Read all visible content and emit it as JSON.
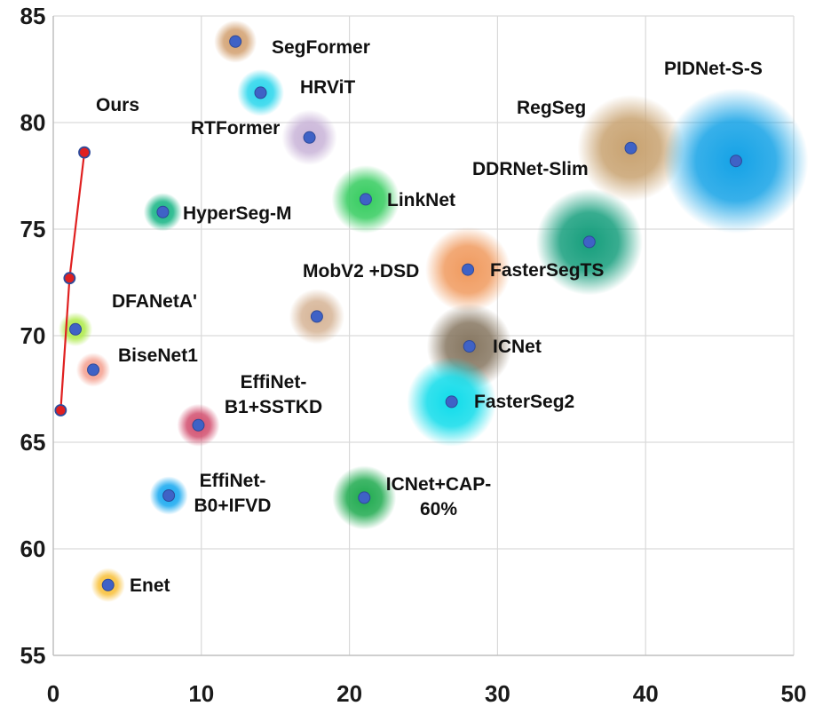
{
  "chart_data": {
    "type": "scatter",
    "title": "",
    "xlabel": "",
    "ylabel": "",
    "xlim": [
      0,
      50
    ],
    "ylim": [
      55,
      85
    ],
    "xticks": [
      "0",
      "10",
      "20",
      "30",
      "40",
      "50"
    ],
    "yticks": [
      "55",
      "60",
      "65",
      "70",
      "75",
      "80",
      "85"
    ],
    "grid": true,
    "ours": {
      "name": "Ours",
      "color": "#e02020",
      "points": [
        {
          "x": 0.5,
          "y": 66.5
        },
        {
          "x": 1.1,
          "y": 72.7
        },
        {
          "x": 2.1,
          "y": 78.6
        }
      ]
    },
    "models": [
      {
        "name": "SegFormer",
        "x": 12.3,
        "y": 83.8,
        "bubble": 1.0,
        "color": "#d2a070"
      },
      {
        "name": "HRViT",
        "x": 14.0,
        "y": 81.4,
        "bubble": 1.1,
        "color": "#29d6ec"
      },
      {
        "name": "RTFormer",
        "x": 17.3,
        "y": 79.3,
        "bubble": 1.3,
        "color": "#c9b4d8"
      },
      {
        "name": "RegSeg",
        "x": 39.0,
        "y": 78.8,
        "bubble": 2.5,
        "color": "#c8a270"
      },
      {
        "name": "PIDNet-S-S",
        "x": 46.1,
        "y": 78.2,
        "bubble": 3.4,
        "color": "#14a2e6"
      },
      {
        "name": "DDRNet-Slim",
        "x": 36.2,
        "y": 74.4,
        "bubble": 2.5,
        "color": "#159e7c"
      },
      {
        "name": "LinkNet",
        "x": 21.1,
        "y": 76.4,
        "bubble": 1.6,
        "color": "#34cc5e"
      },
      {
        "name": "HyperSeg-M",
        "x": 7.4,
        "y": 75.8,
        "bubble": 0.9,
        "color": "#16b484"
      },
      {
        "name": "MobV2 +DSD",
        "x": 17.8,
        "y": 70.9,
        "bubble": 1.3,
        "color": "#d6b496"
      },
      {
        "name": "FasterSegTS",
        "x": 28.0,
        "y": 73.1,
        "bubble": 2.0,
        "color": "#f09a5e"
      },
      {
        "name": "DFANetA'",
        "x": 1.5,
        "y": 70.3,
        "bubble": 0.8,
        "color": "#aeea4a"
      },
      {
        "name": "ICNet",
        "x": 28.1,
        "y": 69.5,
        "bubble": 2.0,
        "color": "#867660"
      },
      {
        "name": "BiseNet1",
        "x": 2.7,
        "y": 68.4,
        "bubble": 0.8,
        "color": "#f4a090"
      },
      {
        "name": "FasterSeg2",
        "x": 26.9,
        "y": 66.9,
        "bubble": 2.1,
        "color": "#10dcea"
      },
      {
        "name": "EffiNet-B1+SSTKD",
        "x": 9.8,
        "y": 65.8,
        "bubble": 1.0,
        "color": "#d24e6e"
      },
      {
        "name": "EffiNet-B0+IFVD",
        "x": 7.8,
        "y": 62.5,
        "bubble": 0.9,
        "color": "#16a8f0"
      },
      {
        "name": "ICNet+CAP-60%",
        "x": 21.0,
        "y": 62.4,
        "bubble": 1.5,
        "color": "#1eaa4e"
      },
      {
        "name": "Enet",
        "x": 3.7,
        "y": 58.3,
        "bubble": 0.8,
        "color": "#f8c038"
      }
    ],
    "point_color": "#3f62c6"
  },
  "labels": {
    "ours": [
      "Ours"
    ],
    "segformer": [
      "SegFormer"
    ],
    "hrvit": [
      "HRViT"
    ],
    "rtformer": [
      "RTFormer"
    ],
    "regseg": [
      "RegSeg"
    ],
    "pidnet": [
      "PIDNet-S-S"
    ],
    "ddrnet": [
      "DDRNet-Slim"
    ],
    "linknet": [
      "LinkNet"
    ],
    "hyperseg": [
      "HyperSeg-M"
    ],
    "mobv2": [
      "MobV2 +DSD"
    ],
    "fastersegts": [
      "FasterSegTS"
    ],
    "dfanet": [
      "DFANetA'"
    ],
    "icnet": [
      "ICNet"
    ],
    "bisenet": [
      "BiseNet1"
    ],
    "fasterseg2": [
      "FasterSeg2"
    ],
    "effib1": [
      "EffiNet-",
      "B1+SSTKD"
    ],
    "effib0": [
      "EffiNet-",
      "B0+IFVD"
    ],
    "icnetcap": [
      "ICNet+CAP-",
      "60%"
    ],
    "enet": [
      "Enet"
    ]
  }
}
